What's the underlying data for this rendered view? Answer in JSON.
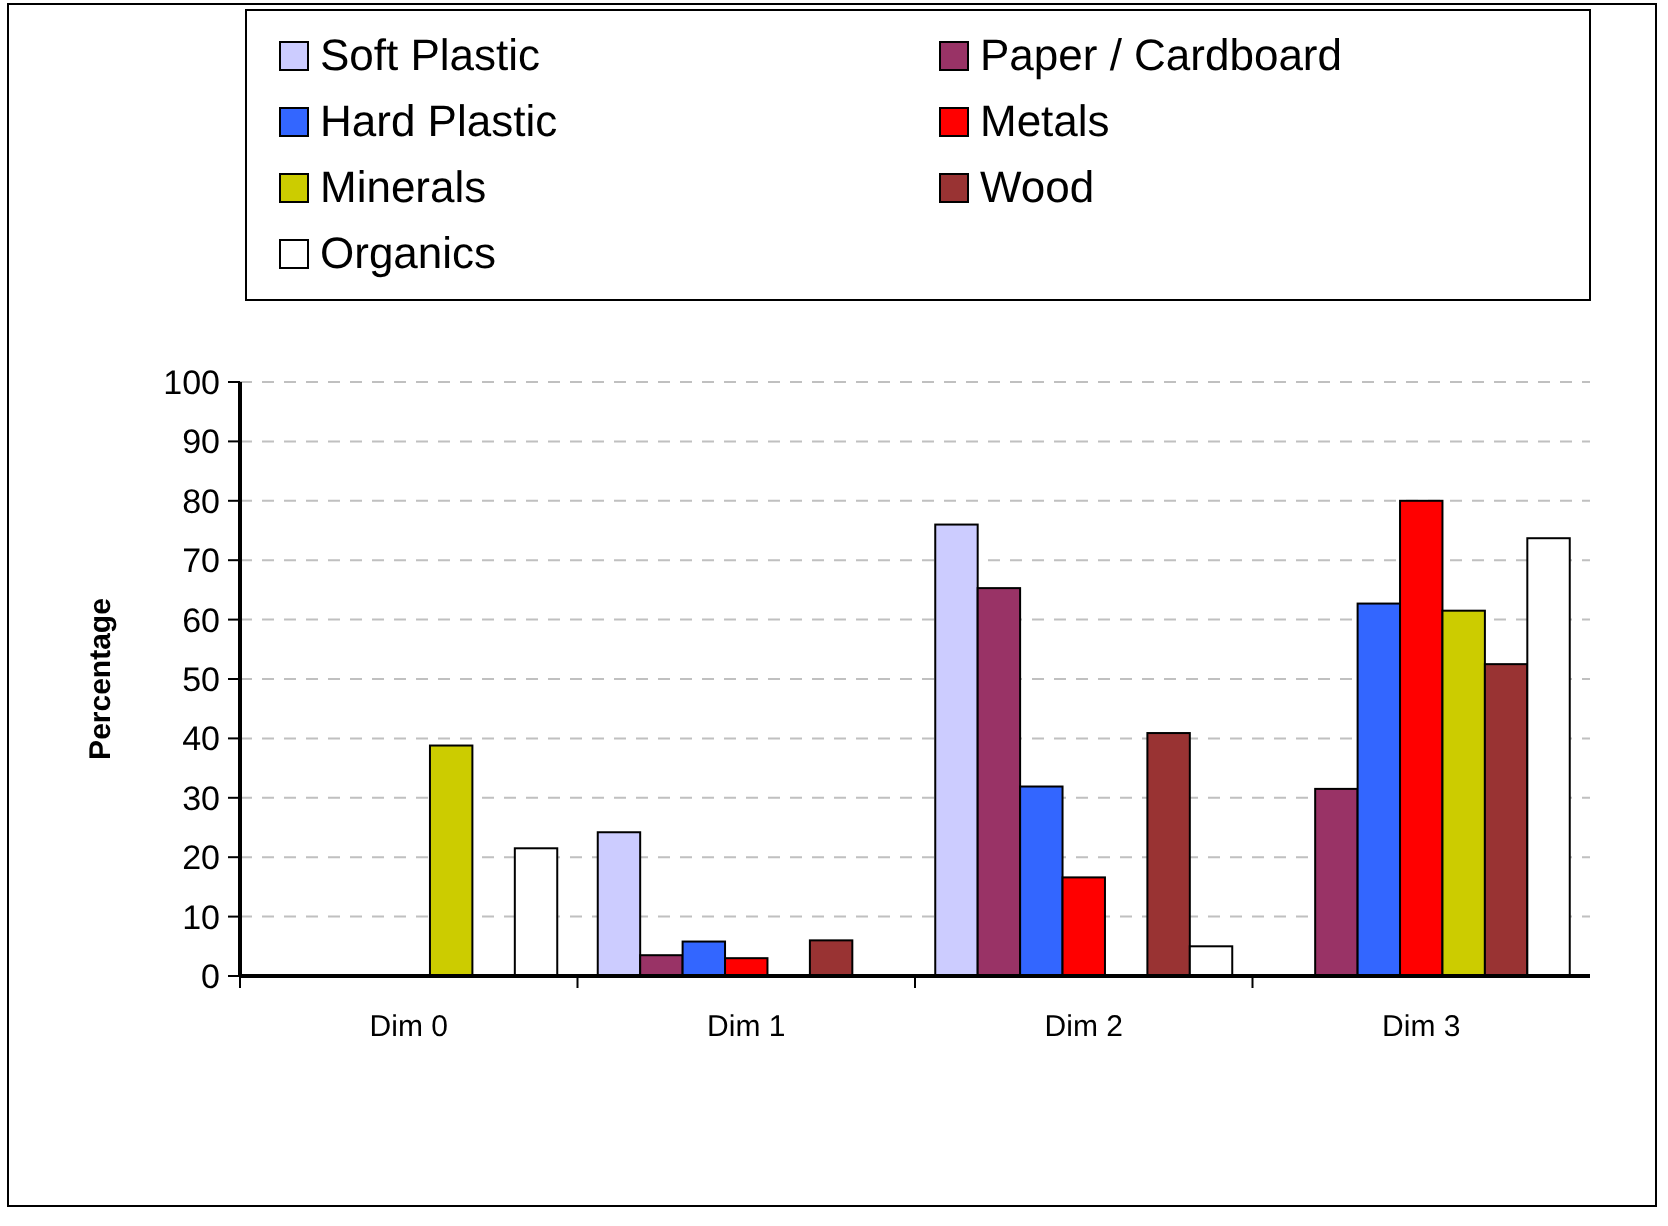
{
  "chart_data": {
    "type": "bar",
    "categories": [
      "Dim 0",
      "Dim 1",
      "Dim 2",
      "Dim 3"
    ],
    "ylabel": "Percentage",
    "ylim": [
      0,
      100
    ],
    "yticks": [
      0,
      10,
      20,
      30,
      40,
      50,
      60,
      70,
      80,
      90,
      100
    ],
    "grid": "y",
    "legend": "top",
    "series": [
      {
        "name": "Soft Plastic",
        "color": "#ccccff",
        "values": [
          null,
          24.2,
          76,
          null
        ]
      },
      {
        "name": "Paper / Cardboard",
        "color": "#993366",
        "values": [
          null,
          3.5,
          65.3,
          31.5
        ]
      },
      {
        "name": "Hard Plastic",
        "color": "#3366ff",
        "values": [
          null,
          5.8,
          31.9,
          62.7
        ]
      },
      {
        "name": "Metals",
        "color": "#ff0000",
        "values": [
          null,
          3,
          16.6,
          80
        ]
      },
      {
        "name": "Minerals",
        "color": "#cccc00",
        "values": [
          38.8,
          null,
          null,
          61.5
        ]
      },
      {
        "name": "Wood",
        "color": "#993333",
        "values": [
          null,
          6,
          40.9,
          52.5
        ]
      },
      {
        "name": "Organics",
        "color": "#ffffff",
        "values": [
          21.5,
          null,
          5,
          73.7
        ]
      }
    ]
  }
}
